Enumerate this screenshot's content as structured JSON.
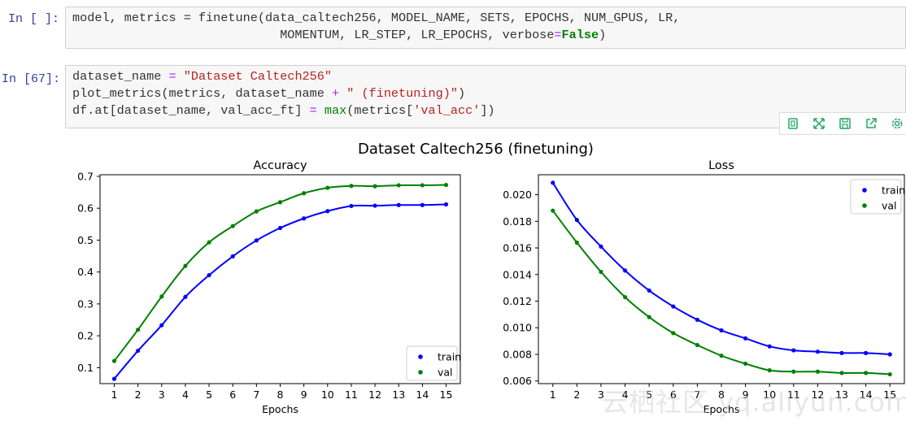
{
  "cells": [
    {
      "prompt": "In [ ]:",
      "lines": [
        [
          [
            "model, metrics = finetune(data_caltech256, MODEL_NAME, SETS, EPOCHS, NUM_GPUS, LR,",
            ""
          ]
        ],
        [
          [
            "                            MOMENTUM, LR_STEP, LR_EPOCHS, verbose",
            ""
          ],
          [
            "=",
            "op"
          ],
          [
            "False",
            "kw"
          ],
          [
            ")",
            ""
          ]
        ]
      ]
    },
    {
      "prompt": "In [67]:",
      "lines": [
        [
          [
            "dataset_name ",
            ""
          ],
          [
            "=",
            "op"
          ],
          [
            " ",
            ""
          ],
          [
            "\"Dataset Caltech256\"",
            "str"
          ]
        ],
        [
          [
            "plot_metrics(metrics, dataset_name ",
            ""
          ],
          [
            "+",
            "op"
          ],
          [
            " ",
            ""
          ],
          [
            "\" (finetuning)\"",
            "str"
          ],
          [
            ")",
            ""
          ]
        ],
        [
          [
            "df.at[dataset_name, val_acc_ft] ",
            ""
          ],
          [
            "=",
            "op"
          ],
          [
            " ",
            ""
          ],
          [
            "max",
            "bi"
          ],
          [
            "(metrics[",
            ""
          ],
          [
            "'val_acc'",
            "str"
          ],
          [
            "])",
            ""
          ]
        ]
      ]
    }
  ],
  "toolbar": {
    "icons": [
      "copy-icon",
      "expand-icon",
      "save-icon",
      "share-icon",
      "settings-icon"
    ],
    "accent": "#22a869"
  },
  "figure_title": "Dataset Caltech256 (finetuning)",
  "watermark": "云栖社区 yq.aliyun.com",
  "chart_data": [
    {
      "type": "line",
      "title": "Accuracy",
      "xlabel": "Epochs",
      "ylabel": "",
      "x": [
        1,
        2,
        3,
        4,
        5,
        6,
        7,
        8,
        9,
        10,
        11,
        12,
        13,
        14,
        15
      ],
      "xlim": [
        0.4,
        15.6
      ],
      "ylim": [
        0.05,
        0.705
      ],
      "yticks": [
        0.1,
        0.2,
        0.3,
        0.4,
        0.5,
        0.6,
        0.7
      ],
      "ytick_labels": [
        "0.1",
        "0.2",
        "0.3",
        "0.4",
        "0.5",
        "0.6",
        "0.7"
      ],
      "legend_loc": "lower-right",
      "series": [
        {
          "name": "train",
          "color": "#0000ff",
          "values": [
            0.065,
            0.153,
            0.233,
            0.322,
            0.39,
            0.449,
            0.499,
            0.538,
            0.568,
            0.591,
            0.607,
            0.608,
            0.61,
            0.61,
            0.612
          ]
        },
        {
          "name": "val",
          "color": "#008000",
          "values": [
            0.121,
            0.219,
            0.323,
            0.419,
            0.493,
            0.544,
            0.59,
            0.619,
            0.647,
            0.664,
            0.67,
            0.669,
            0.672,
            0.672,
            0.673
          ]
        }
      ]
    },
    {
      "type": "line",
      "title": "Loss",
      "xlabel": "Epochs",
      "ylabel": "",
      "x": [
        1,
        2,
        3,
        4,
        5,
        6,
        7,
        8,
        9,
        10,
        11,
        12,
        13,
        14,
        15
      ],
      "xlim": [
        0.4,
        15.6
      ],
      "ylim": [
        0.0058,
        0.0215
      ],
      "yticks": [
        0.006,
        0.008,
        0.01,
        0.012,
        0.014,
        0.016,
        0.018,
        0.02
      ],
      "ytick_labels": [
        "0.006",
        "0.008",
        "0.010",
        "0.012",
        "0.014",
        "0.016",
        "0.018",
        "0.020"
      ],
      "legend_loc": "upper-right",
      "series": [
        {
          "name": "train",
          "color": "#0000ff",
          "values": [
            0.0209,
            0.0181,
            0.0161,
            0.0143,
            0.0128,
            0.0116,
            0.0106,
            0.0098,
            0.0092,
            0.0086,
            0.0083,
            0.0082,
            0.0081,
            0.0081,
            0.008
          ]
        },
        {
          "name": "val",
          "color": "#008000",
          "values": [
            0.0188,
            0.0164,
            0.0142,
            0.0123,
            0.0108,
            0.0096,
            0.0087,
            0.0079,
            0.0073,
            0.0068,
            0.0067,
            0.0067,
            0.0066,
            0.0066,
            0.0065
          ]
        }
      ]
    }
  ]
}
